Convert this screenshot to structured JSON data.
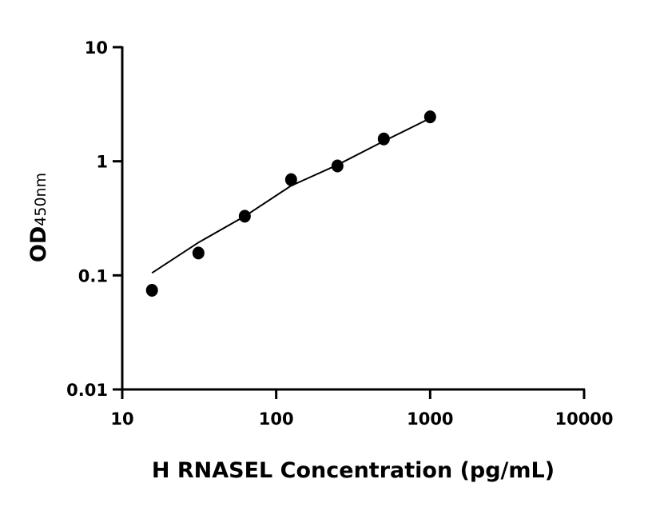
{
  "chart_data": {
    "type": "scatter",
    "title": "",
    "xlabel": "H RNASEL Concentration (pg/mL)",
    "ylabel": "OD",
    "ylabel_subscript": "450nm",
    "x_scale": "log",
    "y_scale": "log",
    "xlim": [
      10,
      10000
    ],
    "ylim": [
      0.01,
      10
    ],
    "x_ticks": [
      10,
      100,
      1000,
      10000
    ],
    "x_tick_labels": [
      "10",
      "100",
      "1000",
      "10000"
    ],
    "y_ticks": [
      0.01,
      0.1,
      1,
      10
    ],
    "y_tick_labels": [
      "0.01",
      "0.1",
      "1",
      "10"
    ],
    "grid": false,
    "points": {
      "x": [
        15.6,
        31.25,
        62.5,
        125,
        250,
        500,
        1000
      ],
      "y": [
        0.074,
        0.157,
        0.33,
        0.69,
        0.91,
        1.57,
        2.45
      ]
    },
    "fit_curve": {
      "x": [
        15.6,
        31.25,
        62.5,
        125,
        250,
        500,
        1000
      ],
      "y": [
        0.105,
        0.194,
        0.33,
        0.61,
        0.93,
        1.5,
        2.38
      ]
    },
    "colors": {
      "marker": "#000000",
      "line": "#000000"
    }
  }
}
